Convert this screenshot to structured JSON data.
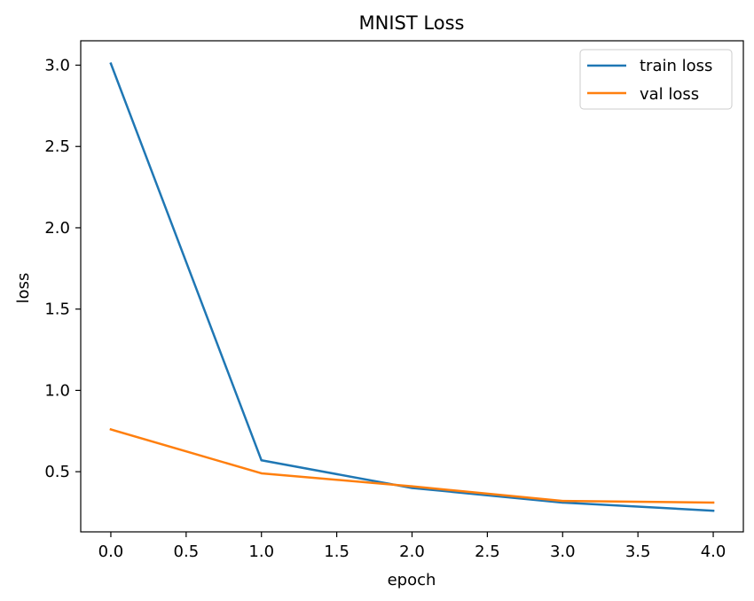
{
  "chart_data": {
    "type": "line",
    "title": "MNIST Loss",
    "xlabel": "epoch",
    "ylabel": "loss",
    "x": [
      0,
      1,
      2,
      3,
      4
    ],
    "xlim": [
      -0.2,
      4.2
    ],
    "ylim": [
      0.13,
      3.15
    ],
    "xticks": [
      0.0,
      0.5,
      1.0,
      1.5,
      2.0,
      2.5,
      3.0,
      3.5,
      4.0
    ],
    "xtick_labels": [
      "0.0",
      "0.5",
      "1.0",
      "1.5",
      "2.0",
      "2.5",
      "3.0",
      "3.5",
      "4.0"
    ],
    "yticks": [
      0.5,
      1.0,
      1.5,
      2.0,
      2.5,
      3.0
    ],
    "ytick_labels": [
      "0.5",
      "1.0",
      "1.5",
      "2.0",
      "2.5",
      "3.0"
    ],
    "grid": false,
    "legend_position": "top-right",
    "series": [
      {
        "name": "train loss",
        "color": "#1f77b4",
        "values": [
          3.01,
          0.57,
          0.4,
          0.31,
          0.26
        ]
      },
      {
        "name": "val loss",
        "color": "#ff7f0e",
        "values": [
          0.76,
          0.49,
          0.41,
          0.32,
          0.31
        ]
      }
    ]
  }
}
